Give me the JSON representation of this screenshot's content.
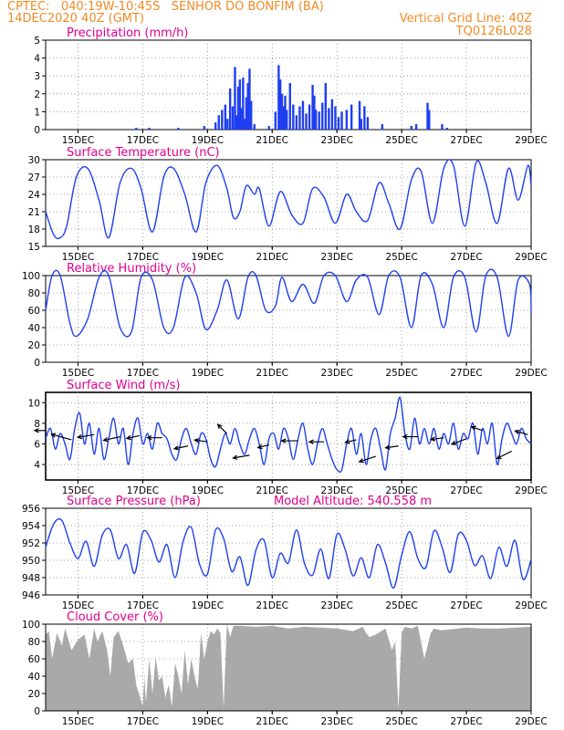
{
  "header": {
    "line1": "CPTEC:   040:19W-10:45S   SENHOR DO BONFIM (BA)",
    "line2": "14DEC2020 40Z (GMT)",
    "grid_note": "Vertical Grid Line: 40Z",
    "code": "TQ0126L028"
  },
  "colors": {
    "header": "#f08a24",
    "title": "#e0008c",
    "line": "#1f3ff0",
    "cloud": "#a9a9a9",
    "wind_arrow": "#000000"
  },
  "x_axis": {
    "start_day": 14.0,
    "end_day": 29.0,
    "tick_days": [
      15,
      17,
      19,
      21,
      23,
      25,
      27,
      29
    ],
    "tick_labels": [
      "15DEC",
      "17DEC",
      "19DEC",
      "21DEC",
      "23DEC",
      "25DEC",
      "27DEC",
      "29DEC"
    ]
  },
  "chart_data": [
    {
      "type": "bar",
      "title": "Precipitation (mm/h)",
      "ylim": [
        0,
        5
      ],
      "yticks": [
        "0",
        "1",
        "2",
        "3",
        "4",
        "5"
      ],
      "x": [
        16.8,
        17.2,
        18.1,
        18.9,
        19.25,
        19.35,
        19.45,
        19.55,
        19.62,
        19.7,
        19.78,
        19.85,
        19.9,
        19.95,
        20.0,
        20.05,
        20.1,
        20.15,
        20.2,
        20.25,
        20.3,
        20.35,
        20.45,
        20.9,
        21.1,
        21.2,
        21.25,
        21.3,
        21.35,
        21.4,
        21.45,
        21.55,
        21.65,
        21.75,
        21.85,
        21.95,
        22.05,
        22.15,
        22.25,
        22.3,
        22.35,
        22.45,
        22.55,
        22.65,
        22.75,
        22.85,
        22.95,
        23.05,
        23.15,
        23.3,
        23.45,
        23.7,
        23.75,
        23.85,
        23.95,
        24.4,
        25.3,
        25.45,
        25.8,
        25.85,
        26.25,
        26.4
      ],
      "values": [
        0.1,
        0.1,
        0.1,
        0.2,
        0.4,
        0.8,
        1.1,
        1.4,
        0.6,
        2.3,
        1.3,
        3.5,
        0.8,
        2.4,
        2.8,
        1.2,
        2.9,
        0.6,
        1.8,
        2.6,
        3.4,
        1.6,
        0.3,
        0.2,
        1.0,
        3.6,
        2.8,
        2.0,
        1.3,
        1.9,
        1.1,
        2.6,
        1.4,
        0.8,
        1.3,
        1.6,
        0.9,
        1.4,
        2.5,
        1.9,
        1.1,
        1.0,
        1.5,
        2.6,
        1.2,
        1.7,
        1.3,
        0.7,
        1.0,
        1.1,
        1.4,
        1.6,
        0.6,
        1.3,
        0.7,
        0.3,
        0.2,
        0.3,
        1.5,
        1.1,
        0.3,
        0.1
      ]
    },
    {
      "type": "line",
      "title": "Surface Temperature (nC)",
      "ylim": [
        15,
        30
      ],
      "yticks": [
        "15",
        "18",
        "21",
        "24",
        "27",
        "30"
      ],
      "x": [
        14.0,
        14.25,
        14.45,
        14.65,
        14.95,
        15.3,
        15.65,
        15.95,
        16.3,
        16.65,
        16.95,
        17.3,
        17.65,
        17.95,
        18.3,
        18.65,
        18.95,
        19.3,
        19.6,
        19.8,
        20.0,
        20.2,
        20.45,
        20.6,
        20.9,
        21.25,
        21.6,
        21.95,
        22.25,
        22.6,
        22.95,
        23.3,
        23.6,
        23.95,
        24.3,
        24.6,
        24.95,
        25.3,
        25.6,
        25.95,
        26.3,
        26.6,
        26.95,
        27.3,
        27.6,
        27.95,
        28.3,
        28.6,
        28.9,
        29.0
      ],
      "values": [
        21.0,
        17.0,
        16.5,
        18.5,
        27.0,
        28.5,
        23.0,
        16.5,
        26.0,
        28.5,
        25.0,
        17.5,
        27.0,
        28.5,
        24.0,
        17.5,
        26.0,
        29.0,
        25.0,
        20.0,
        21.0,
        25.5,
        24.0,
        25.0,
        18.5,
        24.5,
        20.5,
        19.0,
        25.0,
        23.5,
        19.0,
        24.0,
        21.0,
        19.5,
        26.0,
        22.5,
        18.0,
        26.5,
        28.0,
        19.0,
        28.5,
        29.0,
        18.5,
        29.5,
        26.0,
        19.0,
        28.5,
        23.0,
        29.0,
        25.5
      ]
    },
    {
      "type": "line",
      "title": "Relative Humidity (%)",
      "ylim": [
        0,
        100
      ],
      "yticks": [
        "0",
        "20",
        "40",
        "60",
        "80",
        "100"
      ],
      "x": [
        14.0,
        14.2,
        14.45,
        14.75,
        14.95,
        15.3,
        15.65,
        15.95,
        16.3,
        16.65,
        16.95,
        17.3,
        17.65,
        17.95,
        18.3,
        18.65,
        18.95,
        19.3,
        19.6,
        19.95,
        20.25,
        20.5,
        20.8,
        21.1,
        21.3,
        21.6,
        21.95,
        22.3,
        22.6,
        22.95,
        23.3,
        23.6,
        23.95,
        24.3,
        24.6,
        24.95,
        25.3,
        25.6,
        25.95,
        26.3,
        26.6,
        26.95,
        27.3,
        27.6,
        27.95,
        28.3,
        28.6,
        28.95,
        29.0
      ],
      "values": [
        60,
        100,
        100,
        45,
        30,
        50,
        98,
        100,
        40,
        35,
        98,
        95,
        40,
        40,
        98,
        80,
        38,
        60,
        95,
        50,
        98,
        100,
        60,
        65,
        98,
        70,
        90,
        68,
        100,
        100,
        70,
        95,
        98,
        55,
        100,
        98,
        40,
        100,
        90,
        40,
        98,
        98,
        35,
        100,
        98,
        30,
        95,
        90,
        55
      ]
    },
    {
      "type": "line",
      "title": "Surface Wind (m/s)",
      "ylim": [
        2.5,
        11
      ],
      "yticks": [
        "4",
        "6",
        "8",
        "10"
      ],
      "x": [
        14.0,
        14.15,
        14.3,
        14.45,
        14.6,
        14.75,
        14.9,
        15.05,
        15.2,
        15.35,
        15.5,
        15.65,
        15.8,
        15.95,
        16.1,
        16.25,
        16.4,
        16.55,
        16.7,
        16.85,
        17.0,
        17.15,
        17.3,
        17.45,
        17.6,
        17.75,
        17.9,
        18.05,
        18.2,
        18.35,
        18.5,
        18.65,
        18.8,
        18.95,
        19.1,
        19.25,
        19.4,
        19.55,
        19.7,
        19.85,
        20.0,
        20.15,
        20.3,
        20.45,
        20.6,
        20.75,
        20.9,
        21.05,
        21.2,
        21.35,
        21.5,
        21.65,
        21.8,
        21.95,
        22.1,
        22.25,
        22.4,
        22.55,
        22.7,
        22.85,
        23.0,
        23.15,
        23.3,
        23.45,
        23.6,
        23.75,
        23.9,
        24.05,
        24.2,
        24.35,
        24.5,
        24.65,
        24.8,
        24.95,
        25.1,
        25.25,
        25.4,
        25.55,
        25.7,
        25.85,
        26.0,
        26.15,
        26.3,
        26.45,
        26.6,
        26.75,
        26.9,
        27.05,
        27.2,
        27.35,
        27.5,
        27.65,
        27.8,
        27.95,
        28.1,
        28.25,
        28.4,
        28.55,
        28.7,
        28.85,
        29.0
      ],
      "values": [
        6.5,
        7.5,
        5.5,
        7.0,
        6.0,
        4.5,
        7.5,
        9.0,
        6.0,
        8.0,
        5.0,
        7.5,
        4.5,
        6.5,
        8.5,
        6.0,
        7.5,
        4.0,
        7.0,
        8.5,
        6.0,
        7.0,
        5.5,
        8.0,
        7.0,
        6.5,
        5.0,
        4.5,
        6.5,
        7.5,
        6.0,
        5.0,
        7.0,
        6.5,
        4.5,
        3.8,
        5.5,
        7.0,
        6.0,
        7.5,
        6.0,
        5.0,
        6.5,
        7.5,
        6.0,
        4.0,
        6.5,
        7.0,
        5.5,
        7.5,
        6.5,
        4.5,
        6.5,
        8.0,
        5.5,
        4.0,
        6.0,
        7.5,
        6.0,
        4.5,
        3.5,
        3.5,
        6.0,
        7.5,
        5.0,
        7.0,
        4.0,
        6.5,
        7.5,
        5.5,
        3.5,
        7.0,
        8.5,
        10.5,
        7.0,
        5.5,
        8.5,
        6.0,
        7.5,
        6.0,
        7.5,
        5.5,
        7.0,
        6.0,
        8.0,
        5.5,
        7.0,
        6.5,
        8.0,
        5.0,
        7.5,
        6.0,
        8.0,
        4.0,
        6.5,
        8.0,
        7.0,
        6.0,
        7.5,
        6.5,
        6.0
      ],
      "arrows": [
        {
          "day": 14.0,
          "val": 7.3,
          "dx": -12,
          "dy": 0
        },
        {
          "day": 14.8,
          "val": 6.4,
          "dx": -22,
          "dy": -6
        },
        {
          "day": 15.5,
          "val": 6.9,
          "dx": -18,
          "dy": 3
        },
        {
          "day": 16.3,
          "val": 6.7,
          "dx": -18,
          "dy": 4
        },
        {
          "day": 16.9,
          "val": 6.8,
          "dx": -14,
          "dy": 3
        },
        {
          "day": 17.6,
          "val": 6.6,
          "dx": -16,
          "dy": 0
        },
        {
          "day": 18.4,
          "val": 5.8,
          "dx": -15,
          "dy": 3
        },
        {
          "day": 19.0,
          "val": 6.2,
          "dx": -14,
          "dy": -2
        },
        {
          "day": 19.6,
          "val": 7.0,
          "dx": -10,
          "dy": -10
        },
        {
          "day": 20.3,
          "val": 4.9,
          "dx": -18,
          "dy": 3
        },
        {
          "day": 20.9,
          "val": 5.9,
          "dx": -12,
          "dy": 3
        },
        {
          "day": 21.8,
          "val": 6.3,
          "dx": -18,
          "dy": 0
        },
        {
          "day": 22.6,
          "val": 6.2,
          "dx": -16,
          "dy": 0
        },
        {
          "day": 23.6,
          "val": 6.4,
          "dx": -12,
          "dy": 3
        },
        {
          "day": 24.2,
          "val": 4.8,
          "dx": -18,
          "dy": 6
        },
        {
          "day": 24.9,
          "val": 5.8,
          "dx": -14,
          "dy": 2
        },
        {
          "day": 25.5,
          "val": 6.7,
          "dx": -16,
          "dy": 0
        },
        {
          "day": 26.3,
          "val": 6.6,
          "dx": -14,
          "dy": 2
        },
        {
          "day": 27.0,
          "val": 6.5,
          "dx": -16,
          "dy": 6
        },
        {
          "day": 27.5,
          "val": 7.3,
          "dx": -12,
          "dy": -4
        },
        {
          "day": 28.4,
          "val": 5.3,
          "dx": -16,
          "dy": 8
        },
        {
          "day": 28.9,
          "val": 6.9,
          "dx": -14,
          "dy": -4
        }
      ]
    },
    {
      "type": "line",
      "title": "Surface Pressure (hPa)",
      "annotation": "Model Altitude: 540.558  m",
      "ylim": [
        946,
        956
      ],
      "yticks": [
        "946",
        "948",
        "950",
        "952",
        "954",
        "956"
      ],
      "x": [
        14.0,
        14.25,
        14.5,
        14.75,
        15.0,
        15.25,
        15.5,
        15.75,
        16.0,
        16.25,
        16.5,
        16.75,
        17.0,
        17.25,
        17.5,
        17.75,
        18.0,
        18.25,
        18.5,
        18.75,
        19.0,
        19.25,
        19.5,
        19.75,
        20.0,
        20.25,
        20.5,
        20.75,
        21.0,
        21.25,
        21.5,
        21.75,
        22.0,
        22.25,
        22.5,
        22.75,
        23.0,
        23.25,
        23.5,
        23.75,
        24.0,
        24.25,
        24.5,
        24.75,
        25.0,
        25.25,
        25.5,
        25.75,
        26.0,
        26.25,
        26.5,
        26.75,
        27.0,
        27.25,
        27.5,
        27.75,
        28.0,
        28.25,
        28.5,
        28.75,
        29.0
      ],
      "values": [
        951.5,
        954.2,
        954.6,
        952.0,
        950.2,
        952.2,
        949.3,
        952.9,
        953.5,
        950.2,
        951.8,
        948.5,
        953.2,
        952.4,
        949.8,
        951.8,
        948.0,
        952.2,
        953.8,
        949.6,
        948.4,
        953.5,
        952.5,
        948.7,
        950.4,
        947.1,
        951.2,
        952.3,
        948.0,
        950.8,
        949.7,
        953.5,
        949.6,
        948.3,
        951.3,
        947.9,
        953.0,
        951.3,
        948.2,
        950.3,
        948.0,
        951.8,
        949.7,
        946.8,
        950.6,
        953.3,
        950.2,
        949.2,
        953.4,
        951.5,
        948.6,
        953.0,
        952.3,
        949.4,
        950.5,
        947.9,
        951.5,
        949.3,
        952.3,
        947.8,
        950.1
      ]
    },
    {
      "type": "area",
      "title": "Cloud Cover (%)",
      "ylim": [
        0,
        100
      ],
      "yticks": [
        "0",
        "20",
        "40",
        "60",
        "80",
        "100"
      ],
      "x": [
        14.0,
        14.1,
        14.2,
        14.35,
        14.5,
        14.6,
        14.8,
        15.0,
        15.2,
        15.35,
        15.5,
        15.6,
        15.75,
        15.9,
        16.0,
        16.1,
        16.25,
        16.4,
        16.55,
        16.7,
        16.8,
        16.9,
        17.0,
        17.05,
        17.1,
        17.2,
        17.3,
        17.4,
        17.5,
        17.6,
        17.7,
        17.8,
        17.9,
        18.0,
        18.1,
        18.2,
        18.3,
        18.4,
        18.5,
        18.6,
        18.7,
        18.8,
        18.9,
        19.0,
        19.1,
        19.2,
        19.3,
        19.4,
        19.5,
        19.6,
        19.7,
        19.8,
        20.0,
        20.5,
        21.0,
        21.5,
        22.0,
        22.5,
        23.0,
        23.5,
        23.8,
        23.9,
        24.0,
        24.2,
        24.5,
        24.7,
        24.8,
        24.9,
        25.0,
        25.1,
        25.3,
        25.5,
        25.7,
        25.9,
        26.0,
        26.2,
        26.5,
        27.0,
        27.5,
        28.0,
        28.5,
        29.0
      ],
      "values": [
        88,
        92,
        60,
        90,
        75,
        95,
        70,
        82,
        88,
        60,
        95,
        80,
        92,
        70,
        40,
        85,
        92,
        75,
        55,
        60,
        30,
        18,
        5,
        40,
        10,
        60,
        20,
        62,
        35,
        40,
        15,
        30,
        5,
        55,
        40,
        20,
        70,
        30,
        60,
        40,
        25,
        90,
        60,
        80,
        92,
        88,
        95,
        90,
        3,
        100,
        85,
        98,
        98,
        97,
        98,
        95,
        97,
        96,
        95,
        92,
        97,
        90,
        85,
        88,
        95,
        70,
        80,
        2,
        90,
        97,
        95,
        98,
        60,
        90,
        95,
        93,
        94,
        96,
        95,
        95,
        96,
        97
      ]
    }
  ]
}
